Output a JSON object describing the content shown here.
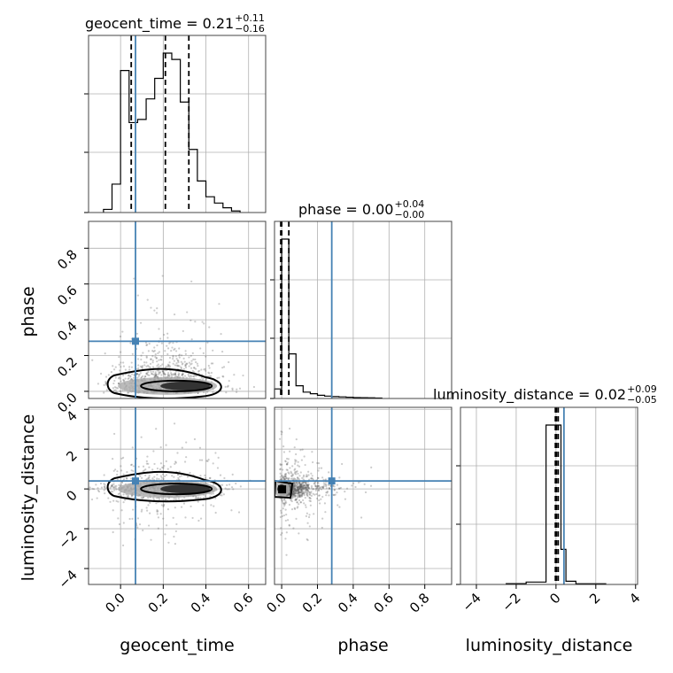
{
  "chart_data": {
    "type": "corner",
    "parameters": [
      "geocent_time",
      "phase",
      "luminosity_distance"
    ],
    "truths": {
      "geocent_time": 0.07,
      "phase": 0.28,
      "luminosity_distance": 0.4
    },
    "titles": [
      {
        "param": "geocent_time",
        "median": "0.21",
        "plus": "+0.11",
        "minus": "−0.16"
      },
      {
        "param": "phase",
        "median": "0.00",
        "plus": "+0.04",
        "minus": "−0.00"
      },
      {
        "param": "luminosity_distance",
        "median": "0.02",
        "plus": "+0.09",
        "minus": "−0.05"
      }
    ],
    "ranges": {
      "geocent_time": [
        -0.15,
        0.68
      ],
      "phase": [
        -0.04,
        0.95
      ],
      "luminosity_distance": [
        -4.8,
        4.1
      ]
    },
    "ticks": {
      "geocent_time": [
        "0.0",
        "0.2",
        "0.4",
        "0.6"
      ],
      "phase": [
        "0.0",
        "0.2",
        "0.4",
        "0.6",
        "0.8"
      ],
      "luminosity_distance": [
        "−4",
        "−2",
        "0",
        "2",
        "4"
      ]
    },
    "tick_values": {
      "geocent_time": [
        0.0,
        0.2,
        0.4,
        0.6
      ],
      "phase": [
        0.0,
        0.2,
        0.4,
        0.6,
        0.8
      ],
      "luminosity_distance": [
        -4,
        -2,
        0,
        2,
        4
      ]
    },
    "histograms": {
      "geocent_time": {
        "edges": [
          -0.08,
          -0.04,
          0.0,
          0.04,
          0.08,
          0.12,
          0.16,
          0.2,
          0.24,
          0.28,
          0.32,
          0.36,
          0.4,
          0.44,
          0.48,
          0.52,
          0.56
        ],
        "counts": [
          2,
          18,
          90,
          57,
          59,
          72,
          85,
          101,
          97,
          70,
          40,
          20,
          10,
          6,
          3,
          1
        ]
      },
      "phase": {
        "edges": [
          -0.04,
          0.0,
          0.04,
          0.08,
          0.12,
          0.16,
          0.2,
          0.24,
          0.28,
          0.32,
          0.36,
          0.4,
          0.44,
          0.48,
          0.52,
          0.56
        ],
        "counts": [
          6,
          100,
          28,
          8,
          4,
          3,
          2,
          1.5,
          1.2,
          1,
          0.8,
          0.6,
          0.5,
          0.4,
          0.3
        ]
      },
      "luminosity_distance": {
        "edges": [
          -2.5,
          -1.5,
          -0.5,
          -0.25,
          0.25,
          0.5,
          1.0,
          2.5
        ],
        "counts": [
          0.5,
          1.5,
          100,
          100,
          22,
          2,
          0.4
        ]
      }
    },
    "quantiles": {
      "geocent_time": [
        0.05,
        0.21,
        0.32
      ],
      "phase": [
        -0.005,
        0.0,
        0.04
      ],
      "luminosity_distance": [
        -0.03,
        0.02,
        0.11
      ]
    },
    "grid": true
  },
  "labels": {
    "x": [
      "geocent_time",
      "phase",
      "luminosity_distance"
    ],
    "y": [
      "phase",
      "luminosity_distance"
    ]
  }
}
